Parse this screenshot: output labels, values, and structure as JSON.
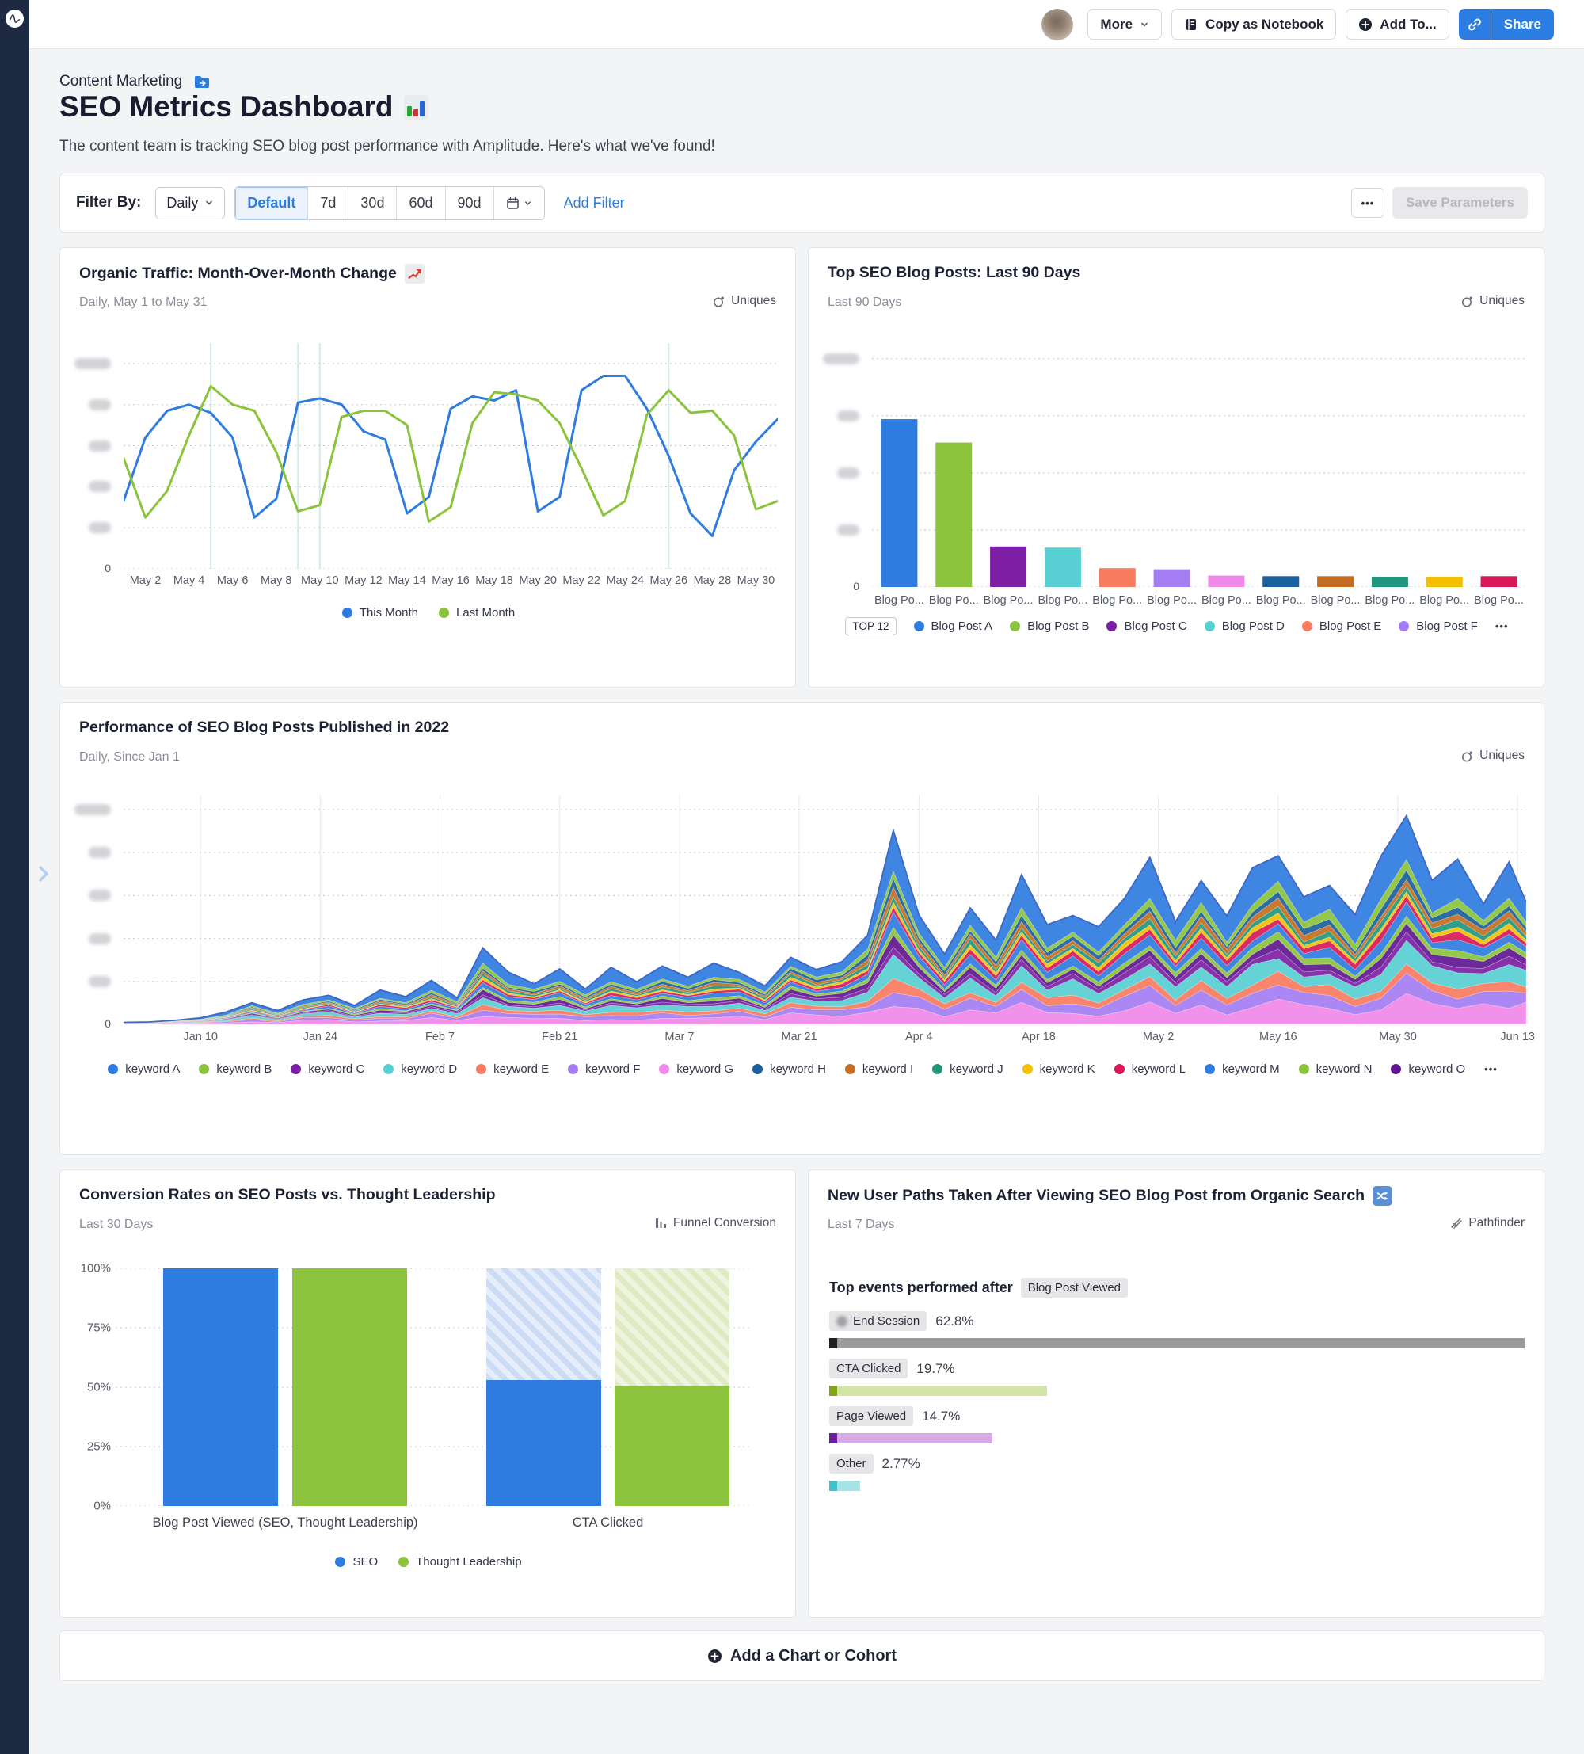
{
  "topbar": {
    "more": "More",
    "copy_as_notebook": "Copy as Notebook",
    "add_to": "Add To...",
    "share": "Share"
  },
  "header": {
    "breadcrumb": "Content Marketing",
    "title": "SEO Metrics Dashboard",
    "title_emoji": "bar-chart",
    "subtitle": "The content team is tracking SEO blog post performance with Amplitude. Here's what we've found!"
  },
  "filter_bar": {
    "label": "Filter By:",
    "interval": "Daily",
    "ranges": [
      "Default",
      "7d",
      "30d",
      "60d",
      "90d"
    ],
    "active_range": "Default",
    "add_filter": "Add Filter",
    "more": "•••",
    "save_parameters": "Save Parameters"
  },
  "footer": {
    "add_chart": "Add a Chart or Cohort"
  },
  "chart_data": [
    {
      "id": "organic-traffic",
      "type": "line",
      "title": "Organic Traffic: Month-Over-Month Change",
      "title_emoji": "chart-increasing",
      "subtitle": "Daily, May 1 to May 31",
      "metric": "Uniques",
      "x_ticks": [
        "May 2",
        "May 4",
        "May 6",
        "May 8",
        "May 10",
        "May 12",
        "May 14",
        "May 16",
        "May 18",
        "May 20",
        "May 22",
        "May 24",
        "May 26",
        "May 28",
        "May 30"
      ],
      "x_days": 31,
      "ylim": [
        0,
        110
      ],
      "y_gridlines": [
        20,
        40,
        60,
        80,
        100
      ],
      "y_labels_redacted": true,
      "annotation_days": [
        4,
        8,
        9,
        25
      ],
      "legend_position": "bottom",
      "grid": true,
      "series": [
        {
          "name": "This Month",
          "color": "#2e7ce0",
          "values": [
            33,
            64,
            77,
            80,
            76,
            64,
            25,
            34,
            81,
            83,
            80,
            67,
            63,
            27,
            35,
            78,
            84,
            82,
            87,
            28,
            35,
            87,
            94,
            94,
            78,
            55,
            27,
            16,
            48,
            62,
            73
          ]
        },
        {
          "name": "Last Month",
          "color": "#8bc33c",
          "values": [
            54,
            25,
            38,
            65,
            89,
            80,
            77,
            57,
            28,
            31,
            74,
            77,
            77,
            70,
            23,
            30,
            71,
            86,
            85,
            82,
            71,
            49,
            26,
            33,
            75,
            87,
            76,
            77,
            65,
            29,
            33
          ]
        }
      ]
    },
    {
      "id": "top-posts",
      "type": "bar",
      "title": "Top SEO Blog Posts: Last 90 Days",
      "subtitle": "Last 90 Days",
      "metric": "Uniques",
      "ylim": [
        0,
        4.3
      ],
      "y_gridlines": [
        1,
        2,
        3,
        4
      ],
      "y_labels_redacted": true,
      "categories": [
        "Blog Po...",
        "Blog Po...",
        "Blog Po...",
        "Blog Po...",
        "Blog Po...",
        "Blog Po...",
        "Blog Po...",
        "Blog Po...",
        "Blog Po...",
        "Blog Po...",
        "Blog Po...",
        "Blog Po..."
      ],
      "values": [
        2.94,
        2.53,
        0.71,
        0.69,
        0.33,
        0.31,
        0.2,
        0.19,
        0.19,
        0.18,
        0.18,
        0.19
      ],
      "colors": [
        "#2e7ce0",
        "#8bc33c",
        "#7d1fa4",
        "#58cfd2",
        "#f87c60",
        "#a47df2",
        "#f088e8",
        "#1a5f9e",
        "#c56e22",
        "#1f967d",
        "#f3c000",
        "#d81858"
      ],
      "legend_badge": "TOP 12",
      "legend": [
        {
          "label": "Blog Post A",
          "color": "#2e7ce0"
        },
        {
          "label": "Blog Post B",
          "color": "#8bc33c"
        },
        {
          "label": "Blog Post C",
          "color": "#7d1fa4"
        },
        {
          "label": "Blog Post D",
          "color": "#58cfd2"
        },
        {
          "label": "Blog Post E",
          "color": "#f87c60"
        },
        {
          "label": "Blog Post F",
          "color": "#a47df2"
        }
      ],
      "legend_more": "•••"
    },
    {
      "id": "posts-2022",
      "type": "area",
      "title": "Performance of SEO Blog Posts Published in 2022",
      "subtitle": "Daily, Since Jan 1",
      "metric": "Uniques",
      "x_ticks": [
        "Jan 10",
        "Jan 24",
        "Feb 7",
        "Feb 21",
        "Mar 7",
        "Mar 21",
        "Apr 4",
        "Apr 18",
        "May 2",
        "May 16",
        "May 30",
        "Jun 13"
      ],
      "x_tick_days": [
        9,
        23,
        37,
        51,
        65,
        79,
        93,
        107,
        121,
        135,
        149,
        163
      ],
      "sample_step": 3,
      "total": [
        1,
        1,
        2,
        3,
        6,
        10,
        7,
        12,
        14,
        9,
        16,
        13,
        20,
        12,
        38,
        22,
        19,
        25,
        17,
        26,
        21,
        28,
        22,
        30,
        24,
        20,
        32,
        26,
        34,
        45,
        88,
        50,
        35,
        55,
        42,
        62,
        48,
        58,
        44,
        66,
        72,
        52,
        64,
        46,
        75,
        82,
        58,
        70,
        52,
        78,
        88,
        62,
        74,
        56,
        85
      ],
      "ylim": [
        0,
        107
      ],
      "y_gridlines": [
        20,
        40,
        60,
        80,
        100
      ],
      "y_labels_redacted": true,
      "series": [
        {
          "name": "keyword A",
          "color": "#2e7ce0",
          "share": 0.2
        },
        {
          "name": "keyword B",
          "color": "#8bc33c",
          "share": 0.05
        },
        {
          "name": "keyword C",
          "color": "#7d1fa4",
          "share": 0.04
        },
        {
          "name": "keyword D",
          "color": "#58cfd2",
          "share": 0.1
        },
        {
          "name": "keyword E",
          "color": "#f87c60",
          "share": 0.06
        },
        {
          "name": "keyword F",
          "color": "#a47df2",
          "share": 0.08
        },
        {
          "name": "keyword G",
          "color": "#f088e8",
          "share": 0.13
        },
        {
          "name": "keyword H",
          "color": "#1a5f9e",
          "share": 0.04
        },
        {
          "name": "keyword I",
          "color": "#c56e22",
          "share": 0.04
        },
        {
          "name": "keyword J",
          "color": "#1f967d",
          "share": 0.04
        },
        {
          "name": "keyword K",
          "color": "#f3c000",
          "share": 0.03
        },
        {
          "name": "keyword L",
          "color": "#d81858",
          "share": 0.04
        },
        {
          "name": "keyword M",
          "color": "#2e7ce0",
          "share": 0.06
        },
        {
          "name": "keyword N",
          "color": "#8bc33c",
          "share": 0.04
        },
        {
          "name": "keyword O",
          "color": "#5e1790",
          "share": 0.05
        }
      ],
      "stack_order_bottom_to_top": [
        "keyword G",
        "keyword F",
        "keyword E",
        "keyword D",
        "keyword C",
        "keyword O",
        "keyword N",
        "keyword M",
        "keyword L",
        "keyword K",
        "keyword J",
        "keyword I",
        "keyword H",
        "keyword B",
        "keyword A"
      ],
      "legend_more": "•••"
    },
    {
      "id": "conversion-rates",
      "type": "bar",
      "title": "Conversion Rates on SEO Posts vs. Thought Leadership",
      "subtitle": "Last 30 Days",
      "metric": "Funnel Conversion",
      "categories": [
        "Blog Post Viewed (SEO, Thought Leadership)",
        "CTA Clicked"
      ],
      "y_ticks": [
        "0%",
        "25%",
        "50%",
        "75%",
        "100%"
      ],
      "ylim": [
        0,
        100
      ],
      "remainder_hatched": true,
      "series": [
        {
          "name": "SEO",
          "color": "#2e7ce0",
          "values": [
            100,
            53
          ],
          "hatch": {
            "c1": "#ccdcf5",
            "c2": "#e6eefb"
          }
        },
        {
          "name": "Thought Leadership",
          "color": "#8bc33c",
          "values": [
            100,
            50.3
          ],
          "hatch": {
            "c1": "#dfeac3",
            "c2": "#eff4de"
          }
        }
      ]
    },
    {
      "id": "new-user-paths",
      "type": "hbar",
      "title": "New User Paths Taken After Viewing SEO Blog Post from Organic Search",
      "title_emoji": "shuffle",
      "subtitle": "Last 7 Days",
      "metric": "Pathfinder",
      "heading": "Top events performed after",
      "heading_chip": "Blog Post Viewed",
      "items": [
        {
          "label": "End Session",
          "value": "62.8%",
          "pct": 62.8,
          "bar": "#9b9b9b",
          "cap": "#1f1f1f",
          "has_icon": true
        },
        {
          "label": "CTA Clicked",
          "value": "19.7%",
          "pct": 19.7,
          "bar": "#d3e5a4",
          "cap": "#83a617"
        },
        {
          "label": "Page Viewed",
          "value": "14.7%",
          "pct": 14.7,
          "bar": "#d7a9e4",
          "cap": "#6f1f9e"
        },
        {
          "label": "Other",
          "value": "2.77%",
          "pct": 2.77,
          "bar": "#a5e5e8",
          "cap": "#3fc3cb"
        }
      ]
    }
  ]
}
